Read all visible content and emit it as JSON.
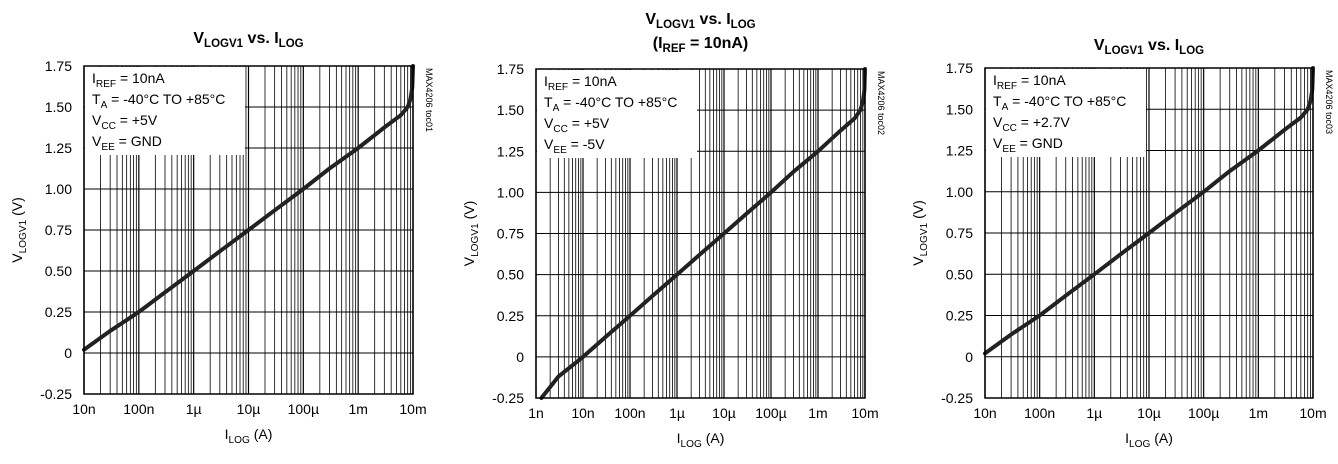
{
  "chart_data": [
    {
      "type": "line",
      "title": [
        [
          {
            "t": "V"
          },
          {
            "t": "LOGV1",
            "sub": true
          },
          {
            "t": " vs. I"
          },
          {
            "t": "LOG",
            "sub": true
          }
        ]
      ],
      "xlabel": [
        {
          "t": "I"
        },
        {
          "t": "LOG",
          "sub": true
        },
        {
          "t": " (A)"
        }
      ],
      "ylabel": [
        {
          "t": "V"
        },
        {
          "t": "LOGV1",
          "sub": true
        },
        {
          "t": " (V)"
        }
      ],
      "x_scale": "log",
      "xlim": [
        1e-08,
        0.01
      ],
      "ylim": [
        -0.25,
        1.75
      ],
      "grid": true,
      "xticks": [
        {
          "value": 1e-08,
          "label": "10n"
        },
        {
          "value": 1e-07,
          "label": "100n"
        },
        {
          "value": 1e-06,
          "label": "1µ"
        },
        {
          "value": 1e-05,
          "label": "10µ"
        },
        {
          "value": 0.0001,
          "label": "100µ"
        },
        {
          "value": 0.001,
          "label": "1m"
        },
        {
          "value": 0.01,
          "label": "10m"
        }
      ],
      "yticks": [
        {
          "value": 1.75,
          "label": "1.75"
        },
        {
          "value": 1.5,
          "label": "1.50"
        },
        {
          "value": 1.25,
          "label": "1.25"
        },
        {
          "value": 1.0,
          "label": "1.00"
        },
        {
          "value": 0.75,
          "label": "0.75"
        },
        {
          "value": 0.5,
          "label": "0.50"
        },
        {
          "value": 0.25,
          "label": "0.25"
        },
        {
          "value": 0.0,
          "label": "0"
        },
        {
          "value": -0.25,
          "label": "-0.25"
        }
      ],
      "annotations": [
        [
          {
            "t": "I"
          },
          {
            "t": "REF",
            "sub": true
          },
          {
            "t": " = 10nA"
          }
        ],
        [
          {
            "t": "T"
          },
          {
            "t": "A",
            "sub": true
          },
          {
            "t": " = -40°C TO +85°C"
          }
        ],
        [
          {
            "t": "V"
          },
          {
            "t": "CC",
            "sub": true
          },
          {
            "t": " = +5V"
          }
        ],
        [
          {
            "t": "V"
          },
          {
            "t": "EE",
            "sub": true
          },
          {
            "t": " = GND"
          }
        ]
      ],
      "code": "MAX4206 toc01",
      "series": [
        {
          "x": [
            1e-08,
            3e-08,
            1e-07,
            3e-07,
            1e-06,
            3e-06,
            1e-05,
            3e-05,
            0.0001,
            0.0003,
            0.001,
            0.003,
            0.006,
            0.008,
            0.009,
            0.0097,
            0.01
          ],
          "y": [
            0.02,
            0.135,
            0.25,
            0.37,
            0.5,
            0.62,
            0.75,
            0.87,
            1.0,
            1.125,
            1.25,
            1.375,
            1.45,
            1.5,
            1.55,
            1.62,
            1.75
          ]
        }
      ]
    },
    {
      "type": "line",
      "title": [
        [
          {
            "t": "V"
          },
          {
            "t": "LOGV1",
            "sub": true
          },
          {
            "t": " vs. I"
          },
          {
            "t": "LOG",
            "sub": true
          }
        ],
        [
          {
            "t": "(I"
          },
          {
            "t": "REF",
            "sub": true
          },
          {
            "t": " = 10nA)"
          }
        ]
      ],
      "xlabel": [
        {
          "t": "I"
        },
        {
          "t": "LOG",
          "sub": true
        },
        {
          "t": " (A)"
        }
      ],
      "ylabel": [
        {
          "t": "V"
        },
        {
          "t": "LOGV1",
          "sub": true
        },
        {
          "t": " (V)"
        }
      ],
      "x_scale": "log",
      "xlim": [
        1e-09,
        0.01
      ],
      "ylim": [
        -0.25,
        1.75
      ],
      "grid": true,
      "xticks": [
        {
          "value": 1e-09,
          "label": "1n"
        },
        {
          "value": 1e-08,
          "label": "10n"
        },
        {
          "value": 1e-07,
          "label": "100n"
        },
        {
          "value": 1e-06,
          "label": "1µ"
        },
        {
          "value": 1e-05,
          "label": "10µ"
        },
        {
          "value": 0.0001,
          "label": "100µ"
        },
        {
          "value": 0.001,
          "label": "1m"
        },
        {
          "value": 0.01,
          "label": "10m"
        }
      ],
      "yticks": [
        {
          "value": 1.75,
          "label": "1.75"
        },
        {
          "value": 1.5,
          "label": "1.50"
        },
        {
          "value": 1.25,
          "label": "1.25"
        },
        {
          "value": 1.0,
          "label": "1.00"
        },
        {
          "value": 0.75,
          "label": "0.75"
        },
        {
          "value": 0.5,
          "label": "0.50"
        },
        {
          "value": 0.25,
          "label": "0.25"
        },
        {
          "value": 0.0,
          "label": "0"
        },
        {
          "value": -0.25,
          "label": "-0.25"
        }
      ],
      "annotations": [
        [
          {
            "t": "I"
          },
          {
            "t": "REF",
            "sub": true
          },
          {
            "t": " = 10nA"
          }
        ],
        [
          {
            "t": "T"
          },
          {
            "t": "A",
            "sub": true
          },
          {
            "t": " = -40°C TO +85°C"
          }
        ],
        [
          {
            "t": "V"
          },
          {
            "t": "CC",
            "sub": true
          },
          {
            "t": " = +5V"
          }
        ],
        [
          {
            "t": "V"
          },
          {
            "t": "EE",
            "sub": true
          },
          {
            "t": " = -5V"
          }
        ]
      ],
      "code": "MAX4206 toc02",
      "series": [
        {
          "x": [
            1.3e-09,
            3e-09,
            1e-08,
            3e-08,
            1e-07,
            3e-07,
            1e-06,
            3e-06,
            1e-05,
            3e-05,
            0.0001,
            0.0003,
            0.001,
            0.003,
            0.006,
            0.008,
            0.009,
            0.0097,
            0.01
          ],
          "y": [
            -0.25,
            -0.12,
            0.0,
            0.12,
            0.25,
            0.37,
            0.5,
            0.62,
            0.75,
            0.87,
            1.0,
            1.125,
            1.25,
            1.375,
            1.45,
            1.5,
            1.55,
            1.62,
            1.75
          ]
        }
      ]
    },
    {
      "type": "line",
      "title": [
        [
          {
            "t": "V"
          },
          {
            "t": "LOGV1",
            "sub": true
          },
          {
            "t": " vs. I"
          },
          {
            "t": "LOG",
            "sub": true
          }
        ]
      ],
      "xlabel": [
        {
          "t": "I"
        },
        {
          "t": "LOG",
          "sub": true
        },
        {
          "t": " (A)"
        }
      ],
      "ylabel": [
        {
          "t": "V"
        },
        {
          "t": "LOGV1",
          "sub": true
        },
        {
          "t": " (V)"
        }
      ],
      "x_scale": "log",
      "xlim": [
        1e-08,
        0.01
      ],
      "ylim": [
        -0.25,
        1.75
      ],
      "grid": true,
      "xticks": [
        {
          "value": 1e-08,
          "label": "10n"
        },
        {
          "value": 1e-07,
          "label": "100n"
        },
        {
          "value": 1e-06,
          "label": "1µ"
        },
        {
          "value": 1e-05,
          "label": "10µ"
        },
        {
          "value": 0.0001,
          "label": "100µ"
        },
        {
          "value": 0.001,
          "label": "1m"
        },
        {
          "value": 0.01,
          "label": "10m"
        }
      ],
      "yticks": [
        {
          "value": 1.75,
          "label": "1.75"
        },
        {
          "value": 1.5,
          "label": "1.50"
        },
        {
          "value": 1.25,
          "label": "1.25"
        },
        {
          "value": 1.0,
          "label": "1.00"
        },
        {
          "value": 0.75,
          "label": "0.75"
        },
        {
          "value": 0.5,
          "label": "0.50"
        },
        {
          "value": 0.25,
          "label": "0.25"
        },
        {
          "value": 0.0,
          "label": "0"
        },
        {
          "value": -0.25,
          "label": "-0.25"
        }
      ],
      "annotations": [
        [
          {
            "t": "I"
          },
          {
            "t": "REF",
            "sub": true
          },
          {
            "t": " = 10nA"
          }
        ],
        [
          {
            "t": "T"
          },
          {
            "t": "A",
            "sub": true
          },
          {
            "t": " = -40°C TO +85°C"
          }
        ],
        [
          {
            "t": "V"
          },
          {
            "t": "CC",
            "sub": true
          },
          {
            "t": " = +2.7V"
          }
        ],
        [
          {
            "t": "V"
          },
          {
            "t": "EE",
            "sub": true
          },
          {
            "t": " = GND"
          }
        ]
      ],
      "code": "MAX4206 toc03",
      "series": [
        {
          "x": [
            1e-08,
            3e-08,
            1e-07,
            3e-07,
            1e-06,
            3e-06,
            1e-05,
            3e-05,
            0.0001,
            0.0003,
            0.001,
            0.003,
            0.006,
            0.008,
            0.009,
            0.0097,
            0.01
          ],
          "y": [
            0.02,
            0.135,
            0.25,
            0.37,
            0.5,
            0.62,
            0.75,
            0.87,
            1.0,
            1.125,
            1.25,
            1.375,
            1.45,
            1.5,
            1.55,
            1.62,
            1.75
          ]
        }
      ]
    }
  ]
}
